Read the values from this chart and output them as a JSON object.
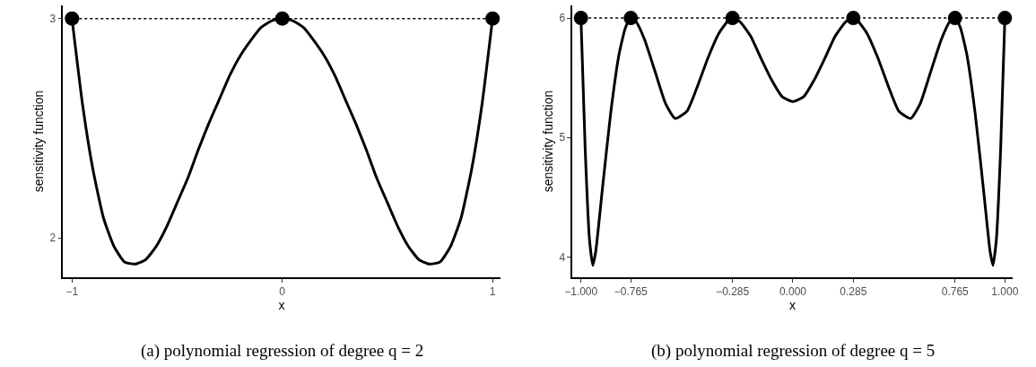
{
  "chart_data": [
    {
      "type": "line",
      "xlabel": "x",
      "ylabel": "sensitivity function",
      "annotations": [
        "(a) polynomial regression of degree q = 2"
      ],
      "xlim": [
        -1.042,
        1.036
      ],
      "ylim": [
        1.82,
        3.06
      ],
      "xticks": [
        -1,
        0,
        1
      ],
      "yticks": [
        2,
        3
      ],
      "grid": false,
      "legend": false,
      "series": [
        {
          "color": "#000000",
          "x": [
            -1,
            -0.95,
            -0.9,
            -0.85,
            -0.8,
            -0.75,
            -0.7,
            -0.65,
            -0.6,
            -0.55,
            -0.5,
            -0.45,
            -0.4,
            -0.35,
            -0.3,
            -0.25,
            -0.2,
            -0.15,
            -0.1,
            -0.05,
            0,
            0.05,
            0.1,
            0.15,
            0.2,
            0.25,
            0.3,
            0.35,
            0.4,
            0.45,
            0.5,
            0.55,
            0.6,
            0.65,
            0.7,
            0.75,
            0.8,
            0.85,
            0.9,
            0.95,
            1
          ],
          "values": [
            3.0,
            2.61,
            2.31,
            2.09,
            1.96,
            1.89,
            1.88,
            1.9,
            1.96,
            2.05,
            2.16,
            2.27,
            2.4,
            2.52,
            2.63,
            2.74,
            2.83,
            2.9,
            2.96,
            2.99,
            3.0,
            2.99,
            2.96,
            2.9,
            2.83,
            2.74,
            2.63,
            2.52,
            2.4,
            2.27,
            2.16,
            2.05,
            1.96,
            1.9,
            1.88,
            1.89,
            1.96,
            2.09,
            2.31,
            2.61,
            3.0
          ]
        },
        {
          "type": "scatter",
          "marker": "circle",
          "color": "#000000",
          "x": [
            -1,
            0,
            1
          ],
          "values": [
            3,
            3,
            3
          ]
        }
      ],
      "ref_lines": [
        {
          "axis": "y",
          "value": 3,
          "color": "#000000",
          "line_style": "dotted"
        }
      ]
    },
    {
      "type": "line",
      "xlabel": "x",
      "ylabel": "sensitivity function",
      "annotations": [
        "(b) polynomial regression of degree q = 5"
      ],
      "xlim": [
        -1.04,
        1.036
      ],
      "ylim": [
        3.83,
        6.106
      ],
      "xticks": [
        {
          "value": -1,
          "label": "−1.000"
        },
        {
          "value": -0.765,
          "label": "−0.765"
        },
        {
          "value": -0.285,
          "label": "−0.285"
        },
        {
          "value": 0,
          "label": "0.000"
        },
        {
          "value": 0.285,
          "label": "0.285"
        },
        {
          "value": 0.765,
          "label": "0.765"
        },
        {
          "value": 1,
          "label": "1.000"
        }
      ],
      "yticks": [
        4,
        5,
        6
      ],
      "grid": false,
      "legend": false,
      "series": [
        {
          "color": "#000000",
          "x": [
            -1,
            -0.98,
            -0.96,
            -0.944,
            -0.93,
            -0.9,
            -0.86,
            -0.82,
            -0.79,
            -0.765,
            -0.74,
            -0.7,
            -0.65,
            -0.6,
            -0.556,
            -0.5,
            -0.45,
            -0.4,
            -0.35,
            -0.3,
            -0.285,
            -0.25,
            -0.2,
            -0.15,
            -0.1,
            -0.05,
            0,
            0.05,
            0.1,
            0.15,
            0.2,
            0.25,
            0.285,
            0.3,
            0.35,
            0.4,
            0.45,
            0.5,
            0.556,
            0.6,
            0.65,
            0.7,
            0.74,
            0.765,
            0.79,
            0.82,
            0.86,
            0.9,
            0.93,
            0.944,
            0.96,
            0.98,
            1
          ],
          "values": [
            6.0,
            4.9,
            4.15,
            3.93,
            4.05,
            4.55,
            5.2,
            5.7,
            5.92,
            6.0,
            5.97,
            5.82,
            5.55,
            5.28,
            5.16,
            5.22,
            5.43,
            5.67,
            5.87,
            5.99,
            6.0,
            5.97,
            5.85,
            5.66,
            5.48,
            5.34,
            5.3,
            5.34,
            5.48,
            5.66,
            5.85,
            5.97,
            6.0,
            5.99,
            5.87,
            5.67,
            5.43,
            5.22,
            5.16,
            5.28,
            5.55,
            5.82,
            5.97,
            6.0,
            5.92,
            5.7,
            5.2,
            4.55,
            4.05,
            3.93,
            4.15,
            4.9,
            6.0
          ]
        },
        {
          "type": "scatter",
          "marker": "circle",
          "color": "#000000",
          "x": [
            -1,
            -0.765,
            -0.285,
            0.285,
            0.765,
            1
          ],
          "values": [
            6,
            6,
            6,
            6,
            6,
            6
          ]
        }
      ],
      "ref_lines": [
        {
          "axis": "y",
          "value": 6,
          "color": "#000000",
          "line_style": "dotted"
        }
      ]
    }
  ]
}
